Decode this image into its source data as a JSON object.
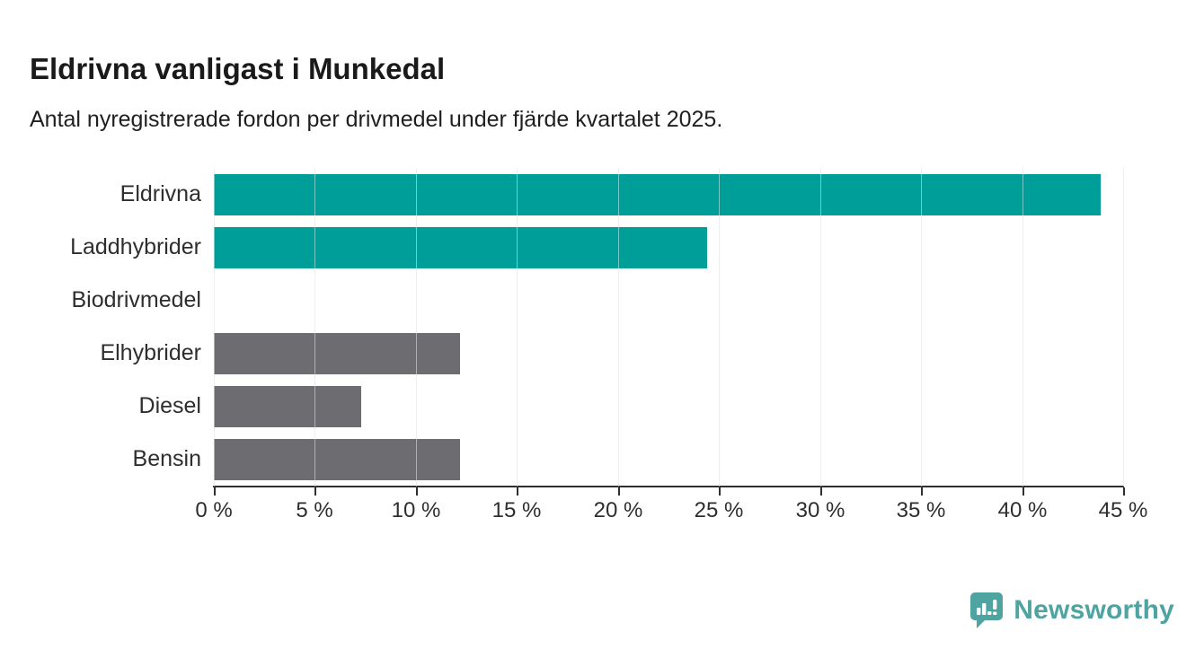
{
  "header": {
    "title": "Eldrivna vanligast i Munkedal",
    "subtitle": "Antal nyregistrerade fordon per drivmedel under fjärde kvartalet 2025."
  },
  "chart_data": {
    "type": "bar",
    "orientation": "horizontal",
    "title": "Eldrivna vanligast i Munkedal",
    "subtitle": "Antal nyregistrerade fordon per drivmedel under fjärde kvartalet 2025.",
    "categories": [
      "Eldrivna",
      "Laddhybrider",
      "Biodrivmedel",
      "Elhybrider",
      "Diesel",
      "Bensin"
    ],
    "values": [
      43.9,
      24.4,
      0,
      12.2,
      7.3,
      12.2
    ],
    "unit": "%",
    "xlim": [
      0,
      45
    ],
    "tick_step": 5,
    "tick_labels": [
      "0 %",
      "5 %",
      "10 %",
      "15 %",
      "20 %",
      "25 %",
      "30 %",
      "35 %",
      "40 %",
      "45 %"
    ],
    "grid": true,
    "legend": "none",
    "bar_colors": [
      "#009e98",
      "#009e98",
      "#009e98",
      "#6d6d71",
      "#6d6d71",
      "#6d6d71"
    ],
    "highlight_color": "#009e98",
    "default_color": "#6d6d71"
  },
  "footer": {
    "brand": "Newsworthy",
    "brand_color": "#4fa3a1",
    "logo_icon": "speech-bubble-bar-chart-icon"
  }
}
